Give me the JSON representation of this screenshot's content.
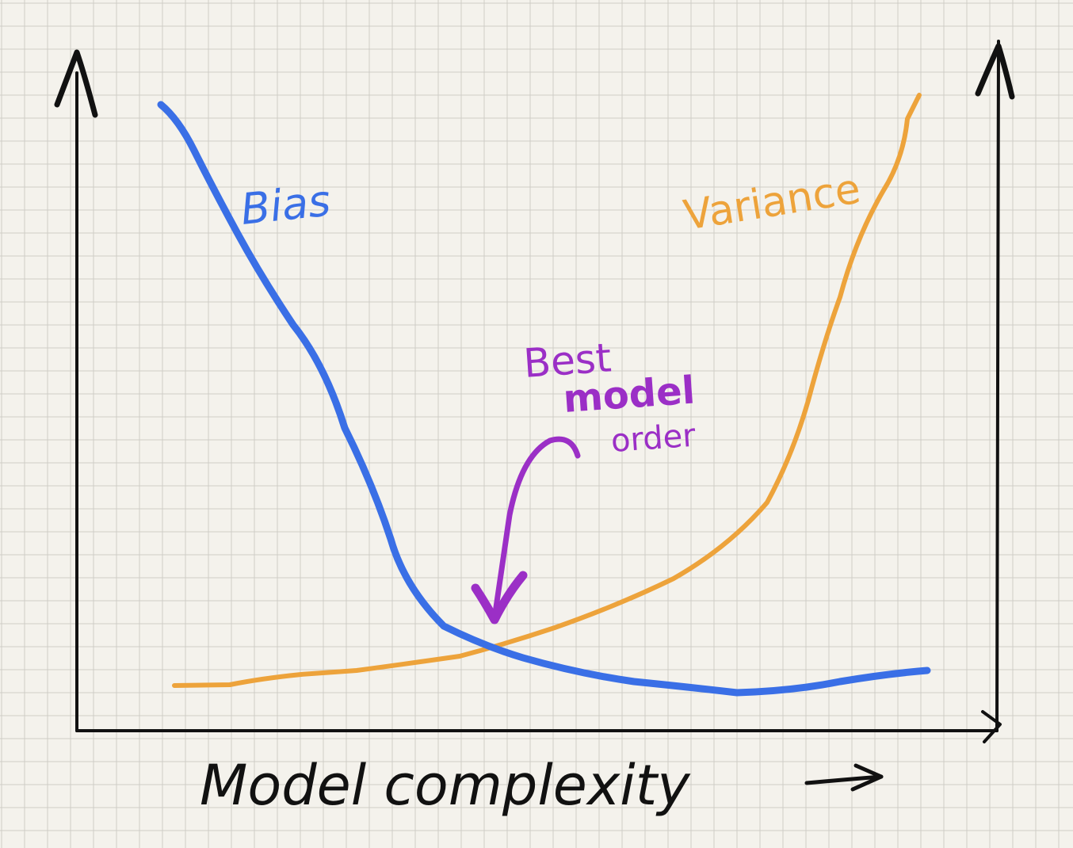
{
  "labels": {
    "bias": "Bias",
    "variance": "Variance",
    "annotation_line1": "Best",
    "annotation_line2": "model",
    "annotation_line3": "order",
    "xlabel": "Model complexity"
  },
  "colors": {
    "paper": "#f4f2ec",
    "grid": "#cfcdc6",
    "ink": "#111111",
    "bias": "#3a6fe6",
    "variance": "#eda33b",
    "annotation": "#9b2fc6"
  },
  "icons": {
    "y_axis_arrow": "arrow-up-icon",
    "secondary_axis_arrow": "arrow-up-icon",
    "x_axis_arrow": "arrow-right-icon",
    "label_arrow": "arrow-right-icon",
    "annotation_arrow": "curved-arrow-down-icon"
  }
}
